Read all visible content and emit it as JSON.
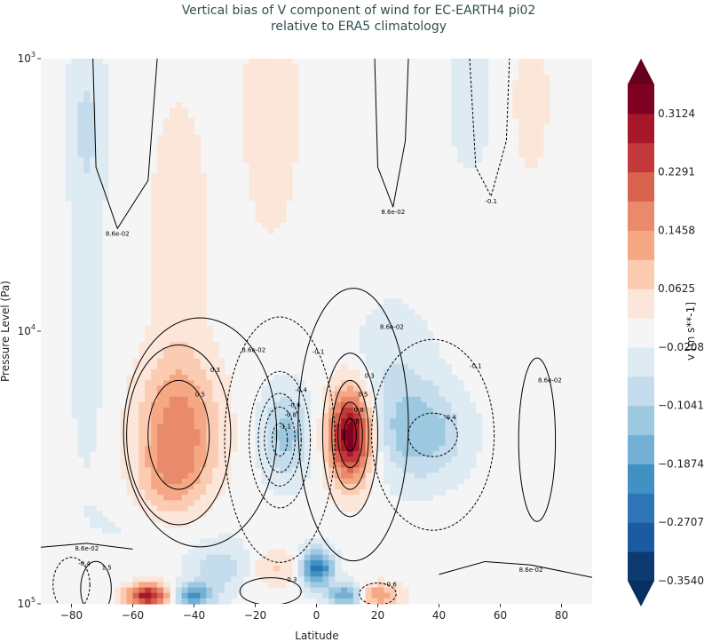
{
  "chart_data": {
    "type": "heatmap",
    "title_lines": [
      "Vertical bias of V component of wind for EC-EARTH4 pi02",
      "relative to ERA5 climatology"
    ],
    "xlabel": "Latitude",
    "ylabel": "Pressure Level (Pa)",
    "xlim": [
      -90,
      90
    ],
    "ylim": [
      100000,
      1000
    ],
    "yscale": "log",
    "x_ticks": [
      -80,
      -60,
      -40,
      -20,
      0,
      20,
      40,
      60,
      80
    ],
    "x_tick_labels": [
      "−80",
      "−60",
      "−40",
      "−20",
      "0",
      "20",
      "40",
      "60",
      "80"
    ],
    "y_ticks": [
      {
        "value": 1000,
        "base": "10",
        "exp": "3"
      },
      {
        "value": 10000,
        "base": "10",
        "exp": "4"
      },
      {
        "value": 100000,
        "base": "10",
        "exp": "5"
      }
    ],
    "colorbar": {
      "label": "v [m s**-1]",
      "min": -0.354,
      "max": 0.354,
      "extend": "both",
      "tick_values": [
        0.3124,
        0.2291,
        0.1458,
        0.0625,
        -0.0208,
        -0.1041,
        -0.1874,
        -0.2707,
        -0.354
      ],
      "tick_labels": [
        "0.3124",
        "0.2291",
        "0.1458",
        "0.0625",
        "−0.0208",
        "−0.1041",
        "−0.1874",
        "−0.2707",
        "−0.3540"
      ],
      "colors_low_to_high": [
        "#0d3a70",
        "#1c5aa1",
        "#2d75b4",
        "#4191c3",
        "#74b0d5",
        "#9dc9e0",
        "#c4dcec",
        "#deebf3",
        "#f5f5f5",
        "#fbe6d9",
        "#fbcbb2",
        "#f6a783",
        "#ea8a6c",
        "#d8634f",
        "#c3393b",
        "#a6172a",
        "#7e0122"
      ],
      "under_color": "#053061",
      "over_color": "#67001f"
    },
    "field_features": [
      {
        "lat": 11,
        "pressure": 24000,
        "value": 0.36,
        "lat_spread": 5,
        "logp_spread": 0.12
      },
      {
        "lat": -45,
        "pressure": 24000,
        "value": 0.18,
        "lat_spread": 9,
        "logp_spread": 0.2
      },
      {
        "lat": -45,
        "pressure": 4000,
        "value": 0.06,
        "lat_spread": 6,
        "logp_spread": 0.3
      },
      {
        "lat": -10,
        "pressure": 24000,
        "value": -0.12,
        "lat_spread": 6,
        "logp_spread": 0.12
      },
      {
        "lat": 35,
        "pressure": 24000,
        "value": -0.12,
        "lat_spread": 10,
        "logp_spread": 0.12
      },
      {
        "lat": 25,
        "pressure": 15000,
        "value": -0.06,
        "lat_spread": 10,
        "logp_spread": 0.2
      },
      {
        "lat": -75,
        "pressure": 8000,
        "value": -0.06,
        "lat_spread": 4,
        "logp_spread": 0.4
      },
      {
        "lat": 0,
        "pressure": 74000,
        "value": -0.26,
        "lat_spread": 4,
        "logp_spread": 0.05
      },
      {
        "lat": -55,
        "pressure": 93000,
        "value": 0.3,
        "lat_spread": 5,
        "logp_spread": 0.03
      },
      {
        "lat": -40,
        "pressure": 93000,
        "value": -0.2,
        "lat_spread": 5,
        "logp_spread": 0.03
      },
      {
        "lat": -30,
        "pressure": 74000,
        "value": -0.1,
        "lat_spread": 8,
        "logp_spread": 0.06
      },
      {
        "lat": -15,
        "pressure": 74000,
        "value": 0.08,
        "lat_spread": 8,
        "logp_spread": 0.05
      },
      {
        "lat": 20,
        "pressure": 93000,
        "value": 0.15,
        "lat_spread": 5,
        "logp_spread": 0.03
      },
      {
        "lat": 10,
        "pressure": 93000,
        "value": -0.2,
        "lat_spread": 4,
        "logp_spread": 0.03
      },
      {
        "lat": -75,
        "pressure": 1600,
        "value": -0.06,
        "lat_spread": 5,
        "logp_spread": 0.2
      },
      {
        "lat": -15,
        "pressure": 1600,
        "value": 0.06,
        "lat_spread": 6,
        "logp_spread": 0.3
      },
      {
        "lat": 50,
        "pressure": 1400,
        "value": -0.05,
        "lat_spread": 5,
        "logp_spread": 0.2
      },
      {
        "lat": 70,
        "pressure": 1400,
        "value": 0.05,
        "lat_spread": 4,
        "logp_spread": 0.2
      },
      {
        "lat": -50,
        "pressure": 40000,
        "value": 0.06,
        "lat_spread": 8,
        "logp_spread": 0.1
      },
      {
        "lat": -50,
        "pressure": 50000,
        "value": -0.05,
        "lat_spread": 15,
        "logp_spread": 0.1
      }
    ],
    "contours": [
      {
        "label": "8.6e-02",
        "lat": -38,
        "pressure": 23500,
        "lat_half": 25,
        "logp_half": 0.42,
        "dashed": false
      },
      {
        "label": "0.3",
        "lat": -45,
        "pressure": 24000,
        "lat_half": 17,
        "logp_half": 0.33,
        "dashed": false
      },
      {
        "label": "0.5",
        "lat": -45,
        "pressure": 24000,
        "lat_half": 10,
        "logp_half": 0.2,
        "dashed": false
      },
      {
        "label": "-0.1",
        "lat": -12,
        "pressure": 25000,
        "lat_half": 18,
        "logp_half": 0.45,
        "dashed": true
      },
      {
        "label": "-0.4",
        "lat": -12,
        "pressure": 25000,
        "lat_half": 10,
        "logp_half": 0.25,
        "dashed": true
      },
      {
        "label": "-0.6",
        "lat": -12,
        "pressure": 25000,
        "lat_half": 7,
        "logp_half": 0.17,
        "dashed": true
      },
      {
        "label": "-0.8",
        "lat": -12,
        "pressure": 25000,
        "lat_half": 5,
        "logp_half": 0.12,
        "dashed": true
      },
      {
        "label": "-1.1",
        "lat": -12,
        "pressure": 25000,
        "lat_half": 2.5,
        "logp_half": 0.06,
        "dashed": true
      },
      {
        "label": "8.6e-02",
        "lat": 12,
        "pressure": 22000,
        "lat_half": 18,
        "logp_half": 0.5,
        "dashed": false
      },
      {
        "label": "0.3",
        "lat": 11,
        "pressure": 24000,
        "lat_half": 9,
        "logp_half": 0.3,
        "dashed": false
      },
      {
        "label": "0.5",
        "lat": 11,
        "pressure": 24000,
        "lat_half": 6,
        "logp_half": 0.2,
        "dashed": false
      },
      {
        "label": "0.8",
        "lat": 11,
        "pressure": 24000,
        "lat_half": 4,
        "logp_half": 0.12,
        "dashed": false
      },
      {
        "label": "1.0",
        "lat": 11,
        "pressure": 24000,
        "lat_half": 2,
        "logp_half": 0.06,
        "dashed": false
      },
      {
        "label": "-0.1",
        "lat": 38,
        "pressure": 24000,
        "lat_half": 20,
        "logp_half": 0.35,
        "dashed": true
      },
      {
        "label": "-0.4",
        "lat": 38,
        "pressure": 24000,
        "lat_half": 8,
        "logp_half": 0.08,
        "dashed": true
      },
      {
        "label": "8.6e-02",
        "lat": 72,
        "pressure": 25000,
        "lat_half": 6,
        "logp_half": 0.3,
        "dashed": false
      },
      {
        "label": "-0.4",
        "lat": -80,
        "pressure": 85000,
        "lat_half": 6,
        "logp_half": 0.1,
        "dashed": true
      },
      {
        "label": "1.5",
        "lat": -72,
        "pressure": 88000,
        "lat_half": 5,
        "logp_half": 0.1,
        "dashed": false
      },
      {
        "label": "0.3",
        "lat": -15,
        "pressure": 90000,
        "lat_half": 10,
        "logp_half": 0.05,
        "dashed": false
      },
      {
        "label": "-0.6",
        "lat": 20,
        "pressure": 92000,
        "lat_half": 6,
        "logp_half": 0.04,
        "dashed": true
      }
    ],
    "open_contours": [
      {
        "label": "8.6e-02",
        "dashed": false,
        "points": [
          [
            -73,
            1000
          ],
          [
            -72,
            2500
          ],
          [
            -65,
            4200
          ],
          [
            -55,
            2800
          ],
          [
            -52,
            1000
          ]
        ]
      },
      {
        "label": "8.6e-02",
        "dashed": false,
        "points": [
          [
            19,
            1000
          ],
          [
            20,
            2500
          ],
          [
            25,
            3500
          ],
          [
            29,
            2000
          ],
          [
            30,
            1000
          ]
        ]
      },
      {
        "label": "-0.1",
        "dashed": true,
        "points": [
          [
            50,
            1000
          ],
          [
            52,
            2500
          ],
          [
            57,
            3200
          ],
          [
            62,
            2000
          ],
          [
            63,
            1000
          ]
        ]
      },
      {
        "label": "8.6e-02",
        "dashed": false,
        "points": [
          [
            -90,
            62000
          ],
          [
            -75,
            60000
          ],
          [
            -60,
            63000
          ]
        ]
      },
      {
        "label": "8.6e-02",
        "dashed": false,
        "points": [
          [
            40,
            78000
          ],
          [
            55,
            70000
          ],
          [
            70,
            72000
          ],
          [
            90,
            80000
          ]
        ]
      }
    ]
  }
}
